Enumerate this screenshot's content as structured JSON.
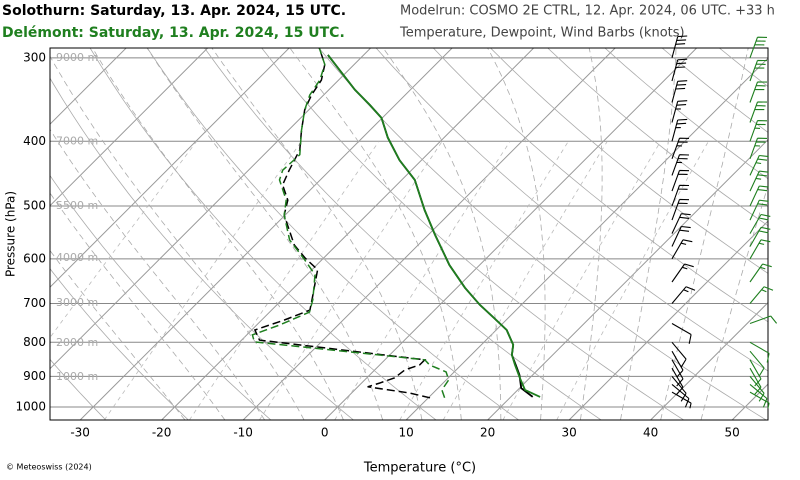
{
  "chart_data": {
    "type": "skewt",
    "model_run": "Modelrun: COSMO 2E CTRL, 12. Apr. 2024, 06 UTC. +33 h",
    "subtitle": "Temperature, Dewpoint, Wind Barbs (knots)",
    "xlabel": "Temperature (°C)",
    "ylabel": "Pressure (hPa)",
    "credit": "© Meteoswiss (2024)",
    "xlim": [
      -33.7,
      54.4
    ],
    "ylim": [
      1046,
      290
    ],
    "log_y": true,
    "skew_deg": 45,
    "xticks": [
      -30,
      -20,
      -10,
      0,
      10,
      20,
      30,
      40,
      50
    ],
    "yticks": [
      300,
      400,
      500,
      600,
      700,
      800,
      900,
      1000
    ],
    "altitude_labels": [
      {
        "value": 300,
        "label": "9000 m"
      },
      {
        "value": 400,
        "label": "7000 m"
      },
      {
        "value": 500,
        "label": "5500 m"
      },
      {
        "value": 598,
        "label": "4000 m"
      },
      {
        "value": 699,
        "label": "3000 m"
      },
      {
        "value": 802,
        "label": "2000 m"
      },
      {
        "value": 902,
        "label": "1000 m"
      }
    ],
    "series": [
      {
        "name": "Solothurn: Saturday, 13. Apr. 2024, 15 UTC.",
        "color": "#000000",
        "temperature": {
          "pressure": [
            966,
            937,
            896,
            874,
            836,
            807,
            767,
            736,
            703,
            663,
            613,
            552,
            507,
            457,
            427,
            395,
            369,
            353,
            335,
            313,
            297
          ],
          "values": [
            22.7,
            20.2,
            18.4,
            17.2,
            15.0,
            13.9,
            11.3,
            8.3,
            4.9,
            1.0,
            -3.7,
            -9.2,
            -13.5,
            -18.4,
            -22.7,
            -26.9,
            -30.1,
            -33.1,
            -36.8,
            -41.1,
            -44.4
          ]
        },
        "dewpoint": {
          "pressure": [
            969,
            953,
            933,
            921,
            905,
            880,
            865,
            850,
            794,
            767,
            741,
            716,
            691,
            623,
            598,
            572,
            516,
            490,
            465,
            442,
            412,
            385,
            359,
            341,
            324,
            307,
            290
          ],
          "values": [
            10.2,
            7.1,
            1.2,
            2.2,
            3.4,
            3.7,
            4.9,
            4.9,
            -17.8,
            -19.6,
            -17.2,
            -15.3,
            -16.3,
            -19.3,
            -22.3,
            -25.2,
            -30.1,
            -31.5,
            -34.0,
            -35.0,
            -36.2,
            -38.4,
            -40.5,
            -41.5,
            -42.1,
            -43.6,
            -46.3
          ]
        },
        "wind": {
          "pressure": [
            300,
            325,
            350,
            375,
            400,
            425,
            450,
            475,
            500,
            525,
            550,
            575,
            600,
            650,
            700,
            750,
            800,
            825,
            850,
            875,
            900,
            925,
            950
          ],
          "speed": [
            30,
            30,
            30,
            25,
            25,
            25,
            25,
            20,
            20,
            20,
            20,
            20,
            15,
            15,
            15,
            10,
            10,
            10,
            10,
            10,
            10,
            10,
            5
          ],
          "direction": [
            195,
            195,
            195,
            195,
            195,
            200,
            200,
            200,
            200,
            200,
            205,
            205,
            210,
            215,
            220,
            300,
            320,
            330,
            330,
            330,
            320,
            310,
            300
          ]
        }
      },
      {
        "name": "Delémont: Saturday, 13. Apr. 2024, 15 UTC.",
        "color": "#1f7f1f",
        "temperature": {
          "pressure": [
            966,
            943,
            905,
            865,
            836,
            807,
            767,
            736,
            703,
            663,
            613,
            552,
            507,
            457,
            427,
            395,
            369,
            353,
            335,
            313,
            297
          ],
          "values": [
            23.6,
            20.9,
            18.8,
            16.6,
            15.0,
            13.9,
            11.3,
            8.3,
            4.9,
            1.0,
            -3.7,
            -9.2,
            -13.5,
            -18.4,
            -22.7,
            -26.9,
            -30.1,
            -33.1,
            -36.8,
            -41.1,
            -44.4
          ]
        },
        "dewpoint": {
          "pressure": [
            969,
            943,
            911,
            886,
            865,
            850,
            799,
            780,
            754,
            721,
            691,
            634,
            602,
            562,
            516,
            490,
            457,
            442,
            419,
            385,
            359,
            341,
            324,
            307,
            290
          ],
          "values": [
            12.0,
            10.7,
            10.3,
            9.0,
            6.1,
            4.9,
            -18.2,
            -19.3,
            -17.2,
            -15.1,
            -16.2,
            -19.0,
            -22.1,
            -26.4,
            -30.1,
            -31.7,
            -35.0,
            -35.8,
            -35.6,
            -38.4,
            -40.5,
            -41.7,
            -42.3,
            -43.6,
            -46.3
          ]
        },
        "wind": {
          "pressure": [
            300,
            325,
            350,
            375,
            400,
            425,
            450,
            475,
            500,
            525,
            550,
            575,
            600,
            650,
            700,
            750,
            800,
            825,
            850,
            875,
            900,
            925,
            950
          ],
          "speed": [
            30,
            30,
            30,
            30,
            25,
            25,
            25,
            25,
            20,
            20,
            20,
            20,
            15,
            15,
            15,
            10,
            10,
            10,
            10,
            10,
            10,
            10,
            5
          ],
          "direction": [
            200,
            200,
            200,
            200,
            200,
            200,
            205,
            205,
            205,
            205,
            210,
            210,
            210,
            215,
            220,
            250,
            300,
            320,
            330,
            330,
            320,
            310,
            300
          ]
        }
      }
    ]
  }
}
